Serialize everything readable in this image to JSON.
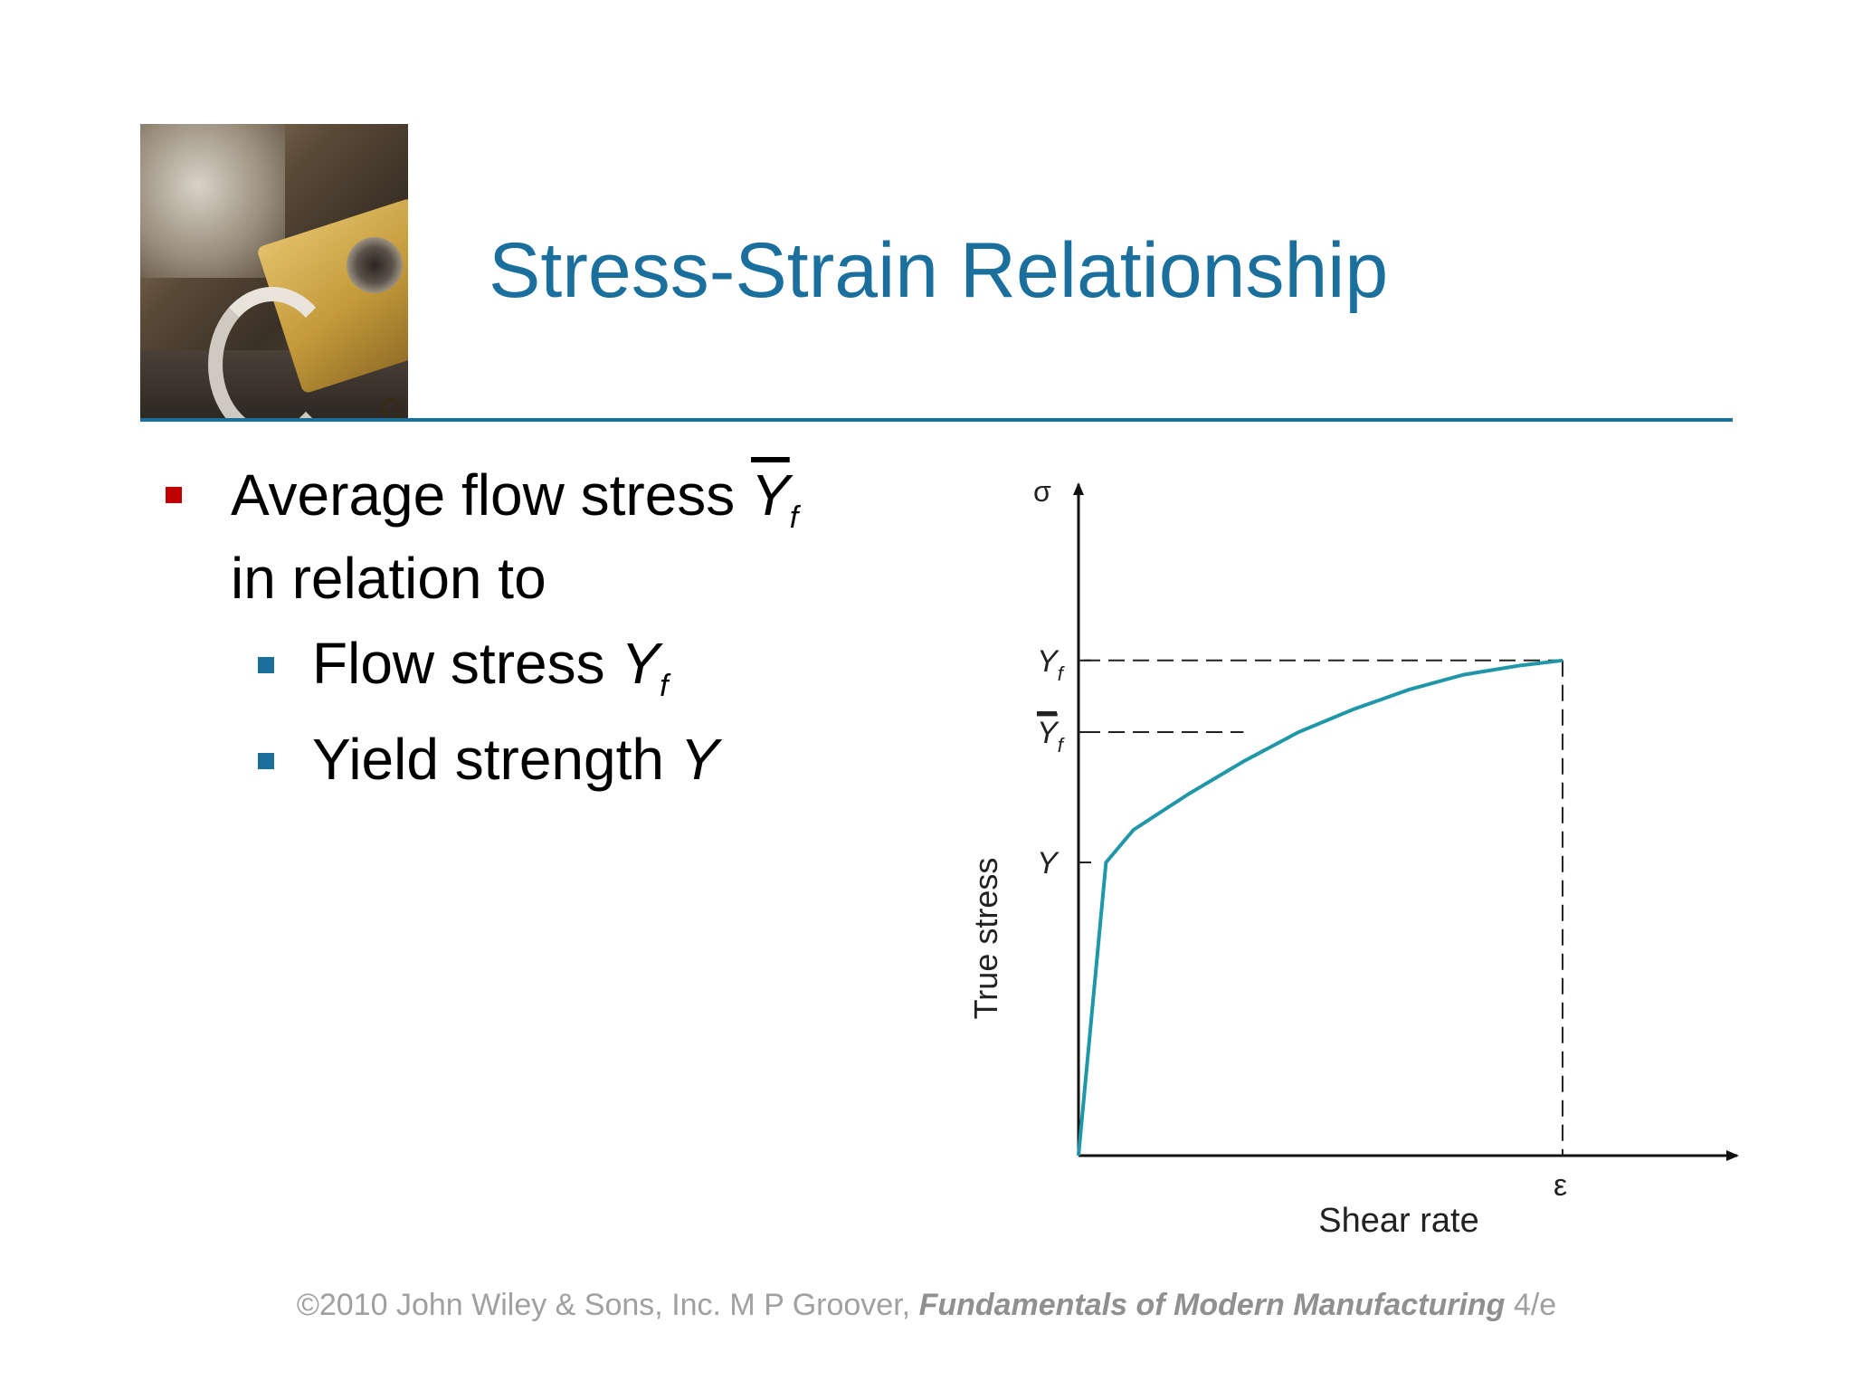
{
  "slide": {
    "title": "Stress-Strain Relationship"
  },
  "bullets": {
    "main_part1": "Average flow stress",
    "main_symbol": "Y",
    "main_subscript": "f",
    "main_line2": "in relation to",
    "sub1_text": "Flow stress",
    "sub1_symbol": "Y",
    "sub1_subscript": "f",
    "sub2_text": "Yield strength",
    "sub2_symbol": "Y"
  },
  "chart_data": {
    "type": "line",
    "xlabel": "Shear rate",
    "ylabel": "True stress",
    "x_axis_symbol": "ε",
    "y_axis_symbol": "σ",
    "y_markers": [
      {
        "symbol": "Y",
        "subscript": "f",
        "overbar": false,
        "value": 0.76
      },
      {
        "symbol": "Y",
        "subscript": "f",
        "overbar": true,
        "value": 0.65
      },
      {
        "symbol": "Y",
        "subscript": "",
        "overbar": false,
        "value": 0.45
      }
    ],
    "x_marker_value": 0.88,
    "curve_points": [
      [
        0,
        0
      ],
      [
        0.05,
        0.45
      ],
      [
        0.1,
        0.5
      ],
      [
        0.2,
        0.555
      ],
      [
        0.3,
        0.605
      ],
      [
        0.4,
        0.65
      ],
      [
        0.5,
        0.685
      ],
      [
        0.6,
        0.715
      ],
      [
        0.7,
        0.738
      ],
      [
        0.8,
        0.752
      ],
      [
        0.88,
        0.76
      ]
    ],
    "curve_color": "#1f97a8",
    "xlim": [
      0,
      1
    ],
    "ylim": [
      0,
      1
    ]
  },
  "footer": {
    "copyright": "©2010 John Wiley & Sons, Inc.  M P Groover,",
    "book": "Fundamentals of Modern Manufacturing",
    "edition": "4/e"
  },
  "colors": {
    "title": "#1a6f9c",
    "bullet_main": "#c00000",
    "bullet_sub": "#1a6f9c"
  },
  "photo_label": "C990"
}
